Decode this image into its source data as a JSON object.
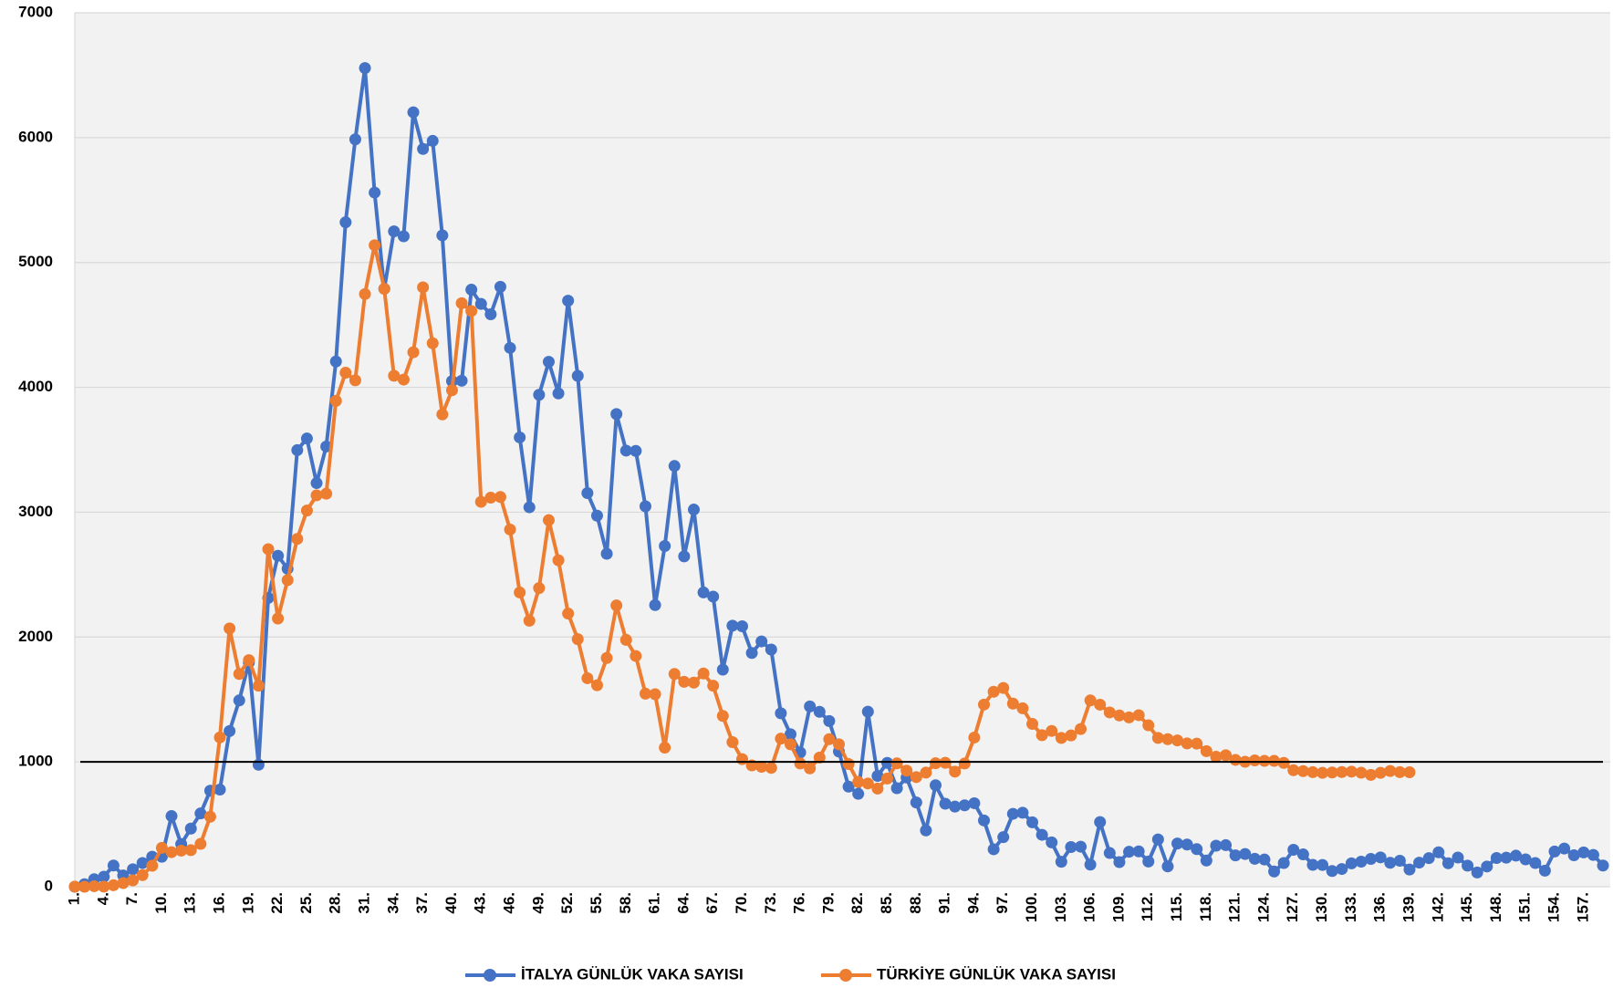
{
  "chart_data": {
    "type": "line",
    "categories": [
      "1.",
      null,
      null,
      "4.",
      null,
      null,
      "7.",
      null,
      null,
      "10.",
      null,
      null,
      "13.",
      null,
      null,
      "16.",
      null,
      null,
      "19.",
      null,
      null,
      "22.",
      null,
      null,
      "25.",
      null,
      null,
      "28.",
      null,
      null,
      "31.",
      null,
      null,
      "34.",
      null,
      null,
      "37.",
      null,
      null,
      "40.",
      null,
      null,
      "43.",
      null,
      null,
      "46.",
      null,
      null,
      "49.",
      null,
      null,
      "52.",
      null,
      null,
      "55.",
      null,
      null,
      "58.",
      null,
      null,
      "61.",
      null,
      null,
      "64.",
      null,
      null,
      "67.",
      null,
      null,
      "70.",
      null,
      null,
      "73.",
      null,
      null,
      "76.",
      null,
      null,
      "79.",
      null,
      null,
      "82.",
      null,
      null,
      "85.",
      null,
      null,
      "88.",
      null,
      null,
      "91.",
      null,
      null,
      "94.",
      null,
      null,
      "97.",
      null,
      null,
      "100.",
      null,
      null,
      "103.",
      null,
      null,
      "106.",
      null,
      null,
      "109.",
      null,
      null,
      "112.",
      null,
      null,
      "115.",
      null,
      null,
      "118.",
      null,
      null,
      "121.",
      null,
      null,
      "124.",
      null,
      null,
      "127.",
      null,
      null,
      "130.",
      null,
      null,
      "133.",
      null,
      null,
      "136.",
      null,
      null,
      "139.",
      null,
      null,
      "142.",
      null,
      null,
      "145.",
      null,
      null,
      "148.",
      null,
      null,
      "151.",
      null,
      null,
      "154.",
      null,
      null,
      "157.",
      null,
      null
    ],
    "series": [
      {
        "name": "İTALYA GÜNLÜK VAKA SAYISI",
        "color": "#4472c4",
        "values": [
          0,
          20,
          60,
          80,
          170,
          90,
          140,
          190,
          240,
          240,
          566,
          342,
          466,
          587,
          769,
          778,
          1247,
          1492,
          1797,
          977,
          2313,
          2651,
          2547,
          3497,
          3590,
          3233,
          3526,
          4207,
          5322,
          5986,
          6557,
          5560,
          4789,
          5249,
          5210,
          6203,
          5909,
          5974,
          5217,
          4050,
          4053,
          4782,
          4668,
          4585,
          4805,
          4316,
          3599,
          3039,
          3940,
          4204,
          3951,
          4694,
          4092,
          3153,
          2972,
          2667,
          3786,
          3493,
          3491,
          3047,
          2256,
          2729,
          3370,
          2646,
          3021,
          2357,
          2324,
          1739,
          2091,
          2086,
          1872,
          1965,
          1900,
          1389,
          1221,
          1075,
          1444,
          1401,
          1327,
          1083,
          802,
          744,
          1402,
          888,
          992,
          789,
          875,
          675,
          451,
          813,
          665,
          642,
          652,
          669,
          531,
          300,
          397,
          584,
          593,
          516,
          416,
          355,
          200,
          318,
          321,
          177,
          518,
          270,
          197,
          280,
          283,
          202,
          379,
          163,
          346,
          338,
          301,
          210,
          329,
          333,
          251,
          262,
          224,
          218,
          122,
          190,
          296,
          259,
          175,
          174,
          126,
          142,
          187,
          201,
          223,
          235,
          192,
          208,
          138,
          193,
          229,
          276,
          188,
          234,
          169,
          114,
          162,
          230,
          233,
          249,
          219,
          190,
          129,
          282,
          306,
          252,
          275,
          255,
          170
        ]
      },
      {
        "name": "TÜRKİYE GÜNLÜK VAKA SAYISI",
        "color": "#ed7d31",
        "values": [
          1,
          0,
          4,
          1,
          12,
          29,
          51,
          93,
          168,
          311,
          277,
          289,
          293,
          343,
          561,
          1196,
          2069,
          1704,
          1815,
          1610,
          2704,
          2148,
          2456,
          2786,
          3013,
          3135,
          3148,
          3892,
          4117,
          4056,
          4747,
          5138,
          4789,
          4093,
          4062,
          4281,
          4801,
          4353,
          3783,
          3977,
          4674,
          4611,
          3083,
          3116,
          3122,
          2861,
          2357,
          2131,
          2392,
          2936,
          2615,
          2188,
          1983,
          1670,
          1614,
          1832,
          2253,
          1977,
          1848,
          1546,
          1542,
          1114,
          1704,
          1641,
          1635,
          1708,
          1610,
          1368,
          1158,
          1022,
          972,
          961,
          952,
          1186,
          1141,
          987,
          948,
          1035,
          1182,
          1141,
          983,
          839,
          827,
          786,
          867,
          988,
          930,
          878,
          914,
          989,
          993,
          922,
          987,
          1195,
          1459,
          1562,
          1592,
          1467,
          1429,
          1304,
          1214,
          1248,
          1192,
          1212,
          1263,
          1492,
          1458,
          1396,
          1372,
          1356,
          1374,
          1293,
          1192,
          1182,
          1172,
          1148,
          1146,
          1086,
          1041,
          1053,
          1016,
          1001,
          1012,
          1008,
          1008,
          992,
          933,
          926,
          918,
          912,
          915,
          919,
          922,
          913,
          896,
          912,
          927,
          918,
          917,
          null,
          null,
          null,
          null,
          null,
          null,
          null,
          null,
          null,
          null,
          null,
          null,
          null,
          null,
          null,
          null,
          null,
          null,
          null,
          null
        ]
      }
    ],
    "ylim": [
      0,
      7000
    ],
    "yticks": [
      0,
      1000,
      2000,
      3000,
      4000,
      5000,
      6000,
      7000
    ],
    "grid": true,
    "reference_line": 1000,
    "legend": "bottom"
  }
}
